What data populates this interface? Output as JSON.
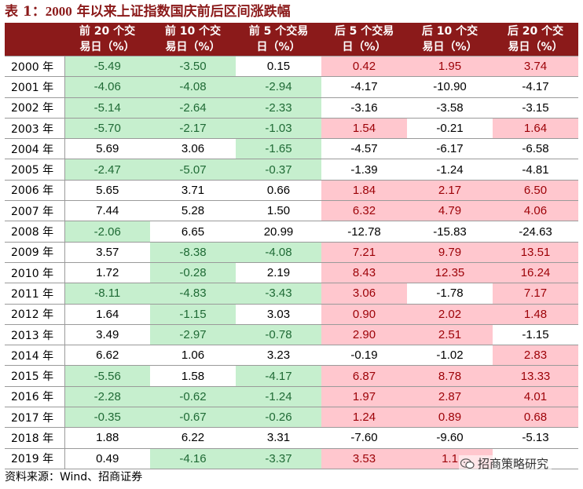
{
  "title": {
    "prefix": "表 1：",
    "year": "2000",
    "text": " 年以来上证指数国庆前后区间涨跌幅"
  },
  "headers": [
    {
      "line1": "",
      "line2": ""
    },
    {
      "line1": "前 20 个交",
      "line2": "易日（%）"
    },
    {
      "line1": "前 10 个交",
      "line2": "易日（%）"
    },
    {
      "line1": "前 5 个交易",
      "line2": "日（%）"
    },
    {
      "line1": "后 5 个交易",
      "line2": "日（%）"
    },
    {
      "line1": "后 10 个交",
      "line2": "易日（%）"
    },
    {
      "line1": "后 20 个交",
      "line2": "易日（%）"
    }
  ],
  "colors": {
    "header_bg": "#8b1a1a",
    "positive_fill": "#ffc7ce",
    "negative_fill": "#c6efce"
  },
  "rows": [
    {
      "year": "2000 年",
      "values": [
        "-5.49",
        "-3.50",
        "0.15",
        "0.42",
        "1.95",
        "3.74"
      ],
      "fill": [
        "g",
        "g",
        "n",
        "r",
        "r",
        "r"
      ]
    },
    {
      "year": "2001 年",
      "values": [
        "-4.06",
        "-4.08",
        "-2.94",
        "-4.17",
        "-10.90",
        "-4.17"
      ],
      "fill": [
        "g",
        "g",
        "g",
        "n",
        "n",
        "n"
      ]
    },
    {
      "year": "2002 年",
      "values": [
        "-5.14",
        "-2.64",
        "-2.33",
        "-3.16",
        "-3.58",
        "-3.15"
      ],
      "fill": [
        "g",
        "g",
        "g",
        "n",
        "n",
        "n"
      ]
    },
    {
      "year": "2003 年",
      "values": [
        "-5.70",
        "-2.17",
        "-1.03",
        "1.54",
        "-0.21",
        "1.64"
      ],
      "fill": [
        "g",
        "g",
        "g",
        "r",
        "n",
        "r"
      ]
    },
    {
      "year": "2004 年",
      "values": [
        "5.69",
        "3.06",
        "-1.65",
        "-4.57",
        "-6.17",
        "-6.58"
      ],
      "fill": [
        "n",
        "n",
        "g",
        "n",
        "n",
        "n"
      ]
    },
    {
      "year": "2005 年",
      "values": [
        "-2.47",
        "-5.07",
        "-0.37",
        "-1.39",
        "-1.24",
        "-4.81"
      ],
      "fill": [
        "g",
        "g",
        "g",
        "n",
        "n",
        "n"
      ]
    },
    {
      "year": "2006 年",
      "values": [
        "5.65",
        "3.71",
        "0.66",
        "1.84",
        "2.17",
        "6.50"
      ],
      "fill": [
        "n",
        "n",
        "n",
        "r",
        "r",
        "r"
      ]
    },
    {
      "year": "2007 年",
      "values": [
        "7.44",
        "5.28",
        "1.50",
        "6.32",
        "4.79",
        "4.06"
      ],
      "fill": [
        "n",
        "n",
        "n",
        "r",
        "r",
        "r"
      ]
    },
    {
      "year": "2008 年",
      "values": [
        "-2.06",
        "6.65",
        "20.99",
        "-12.78",
        "-15.83",
        "-24.63"
      ],
      "fill": [
        "g",
        "n",
        "n",
        "n",
        "n",
        "n"
      ]
    },
    {
      "year": "2009 年",
      "values": [
        "3.57",
        "-8.38",
        "-4.08",
        "7.21",
        "9.79",
        "13.51"
      ],
      "fill": [
        "n",
        "g",
        "g",
        "r",
        "r",
        "r"
      ]
    },
    {
      "year": "2010 年",
      "values": [
        "1.72",
        "-0.28",
        "2.19",
        "8.43",
        "12.35",
        "16.24"
      ],
      "fill": [
        "n",
        "g",
        "n",
        "r",
        "r",
        "r"
      ]
    },
    {
      "year": "2011 年",
      "values": [
        "-8.11",
        "-4.83",
        "-3.43",
        "3.06",
        "-1.78",
        "7.17"
      ],
      "fill": [
        "g",
        "g",
        "g",
        "r",
        "n",
        "r"
      ]
    },
    {
      "year": "2012 年",
      "values": [
        "1.64",
        "-1.15",
        "3.03",
        "0.90",
        "2.02",
        "1.48"
      ],
      "fill": [
        "n",
        "g",
        "n",
        "r",
        "r",
        "r"
      ]
    },
    {
      "year": "2013 年",
      "values": [
        "3.49",
        "-2.97",
        "-0.78",
        "2.90",
        "2.51",
        "-1.15"
      ],
      "fill": [
        "n",
        "g",
        "g",
        "r",
        "r",
        "n"
      ]
    },
    {
      "year": "2014 年",
      "values": [
        "6.62",
        "1.06",
        "3.23",
        "-0.19",
        "-1.02",
        "2.83"
      ],
      "fill": [
        "n",
        "n",
        "n",
        "n",
        "n",
        "r"
      ]
    },
    {
      "year": "2015 年",
      "values": [
        "-5.56",
        "1.58",
        "-4.17",
        "6.87",
        "8.78",
        "13.33"
      ],
      "fill": [
        "g",
        "n",
        "g",
        "r",
        "r",
        "r"
      ]
    },
    {
      "year": "2016 年",
      "values": [
        "-2.28",
        "-0.62",
        "-1.24",
        "1.97",
        "2.87",
        "4.01"
      ],
      "fill": [
        "g",
        "g",
        "g",
        "r",
        "r",
        "r"
      ]
    },
    {
      "year": "2017 年",
      "values": [
        "-0.35",
        "-0.67",
        "-0.26",
        "1.24",
        "0.89",
        "0.68"
      ],
      "fill": [
        "g",
        "g",
        "g",
        "r",
        "r",
        "r"
      ]
    },
    {
      "year": "2018 年",
      "values": [
        "1.88",
        "6.22",
        "3.31",
        "-7.60",
        "-9.60",
        "-5.13"
      ],
      "fill": [
        "n",
        "n",
        "n",
        "n",
        "n",
        "n"
      ]
    },
    {
      "year": "2019 年",
      "values": [
        "0.49",
        "-4.16",
        "-3.37",
        "3.53",
        "1.1",
        ""
      ],
      "fill": [
        "n",
        "g",
        "g",
        "r",
        "r",
        "n"
      ]
    }
  ],
  "source": "资料来源：Wind、招商证券",
  "watermark": {
    "text": "招商策略研究",
    "icon": "wechat-icon"
  }
}
